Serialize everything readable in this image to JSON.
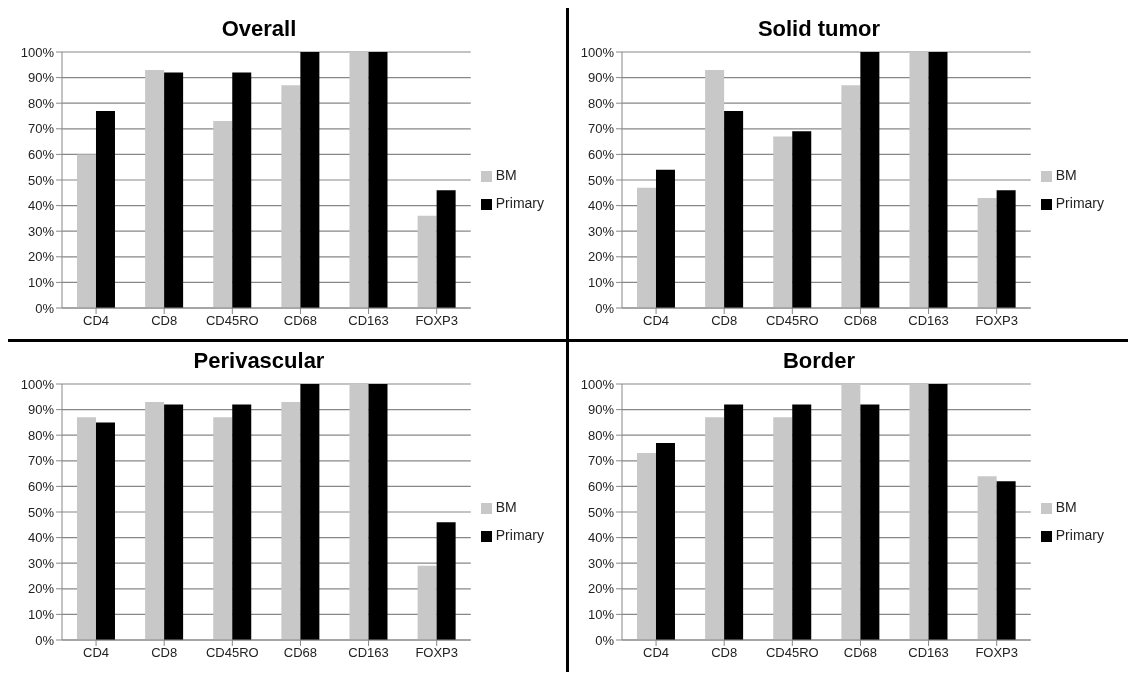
{
  "chart_data": [
    {
      "type": "bar",
      "title": "Overall",
      "categories": [
        "CD4",
        "CD8",
        "CD45RO",
        "CD68",
        "CD163",
        "FOXP3"
      ],
      "series": [
        {
          "name": "BM",
          "color": "#c8c8c8",
          "values": [
            60,
            93,
            73,
            87,
            100,
            36
          ]
        },
        {
          "name": "Primary",
          "color": "#000000",
          "values": [
            77,
            92,
            92,
            100,
            100,
            46
          ]
        }
      ],
      "ylim": [
        0,
        100
      ],
      "yticks": [
        {
          "value": 0,
          "label": "0%"
        },
        {
          "value": 10,
          "label": "10%"
        },
        {
          "value": 20,
          "label": "20%"
        },
        {
          "value": 30,
          "label": "30%"
        },
        {
          "value": 40,
          "label": "40%"
        },
        {
          "value": 50,
          "label": "50%"
        },
        {
          "value": 60,
          "label": "60%"
        },
        {
          "value": 70,
          "label": "70%"
        },
        {
          "value": 80,
          "label": "80%"
        },
        {
          "value": 90,
          "label": "90%"
        },
        {
          "value": 100,
          "label": "100%"
        }
      ],
      "grid": "y",
      "legend": "right"
    },
    {
      "type": "bar",
      "title": "Solid tumor",
      "categories": [
        "CD4",
        "CD8",
        "CD45RO",
        "CD68",
        "CD163",
        "FOXP3"
      ],
      "series": [
        {
          "name": "BM",
          "color": "#c8c8c8",
          "values": [
            47,
            93,
            67,
            87,
            100,
            43
          ]
        },
        {
          "name": "Primary",
          "color": "#000000",
          "values": [
            54,
            77,
            69,
            100,
            100,
            46
          ]
        }
      ],
      "ylim": [
        0,
        100
      ],
      "yticks": [
        {
          "value": 0,
          "label": "0%"
        },
        {
          "value": 10,
          "label": "10%"
        },
        {
          "value": 20,
          "label": "20%"
        },
        {
          "value": 30,
          "label": "30%"
        },
        {
          "value": 40,
          "label": "40%"
        },
        {
          "value": 50,
          "label": "50%"
        },
        {
          "value": 60,
          "label": "60%"
        },
        {
          "value": 70,
          "label": "70%"
        },
        {
          "value": 80,
          "label": "80%"
        },
        {
          "value": 90,
          "label": "90%"
        },
        {
          "value": 100,
          "label": "100%"
        }
      ],
      "grid": "y",
      "legend": "right"
    },
    {
      "type": "bar",
      "title": "Perivascular",
      "categories": [
        "CD4",
        "CD8",
        "CD45RO",
        "CD68",
        "CD163",
        "FOXP3"
      ],
      "series": [
        {
          "name": "BM",
          "color": "#c8c8c8",
          "values": [
            87,
            93,
            87,
            93,
            100,
            29
          ]
        },
        {
          "name": "Primary",
          "color": "#000000",
          "values": [
            85,
            92,
            92,
            100,
            100,
            46
          ]
        }
      ],
      "ylim": [
        0,
        100
      ],
      "yticks": [
        {
          "value": 0,
          "label": "0%"
        },
        {
          "value": 10,
          "label": "10%"
        },
        {
          "value": 20,
          "label": "20%"
        },
        {
          "value": 30,
          "label": "30%"
        },
        {
          "value": 40,
          "label": "40%"
        },
        {
          "value": 50,
          "label": "50%"
        },
        {
          "value": 60,
          "label": "60%"
        },
        {
          "value": 70,
          "label": "70%"
        },
        {
          "value": 80,
          "label": "80%"
        },
        {
          "value": 90,
          "label": "90%"
        },
        {
          "value": 100,
          "label": "100%"
        }
      ],
      "grid": "y",
      "legend": "right"
    },
    {
      "type": "bar",
      "title": "Border",
      "categories": [
        "CD4",
        "CD8",
        "CD45RO",
        "CD68",
        "CD163",
        "FOXP3"
      ],
      "series": [
        {
          "name": "BM",
          "color": "#c8c8c8",
          "values": [
            73,
            87,
            87,
            100,
            100,
            64
          ]
        },
        {
          "name": "Primary",
          "color": "#000000",
          "values": [
            77,
            92,
            92,
            92,
            100,
            62
          ]
        }
      ],
      "ylim": [
        0,
        100
      ],
      "yticks": [
        {
          "value": 0,
          "label": "0%"
        },
        {
          "value": 10,
          "label": "10%"
        },
        {
          "value": 20,
          "label": "20%"
        },
        {
          "value": 30,
          "label": "30%"
        },
        {
          "value": 40,
          "label": "40%"
        },
        {
          "value": 50,
          "label": "50%"
        },
        {
          "value": 60,
          "label": "60%"
        },
        {
          "value": 70,
          "label": "70%"
        },
        {
          "value": 80,
          "label": "80%"
        },
        {
          "value": 90,
          "label": "90%"
        },
        {
          "value": 100,
          "label": "100%"
        }
      ],
      "grid": "y",
      "legend": "right"
    }
  ]
}
